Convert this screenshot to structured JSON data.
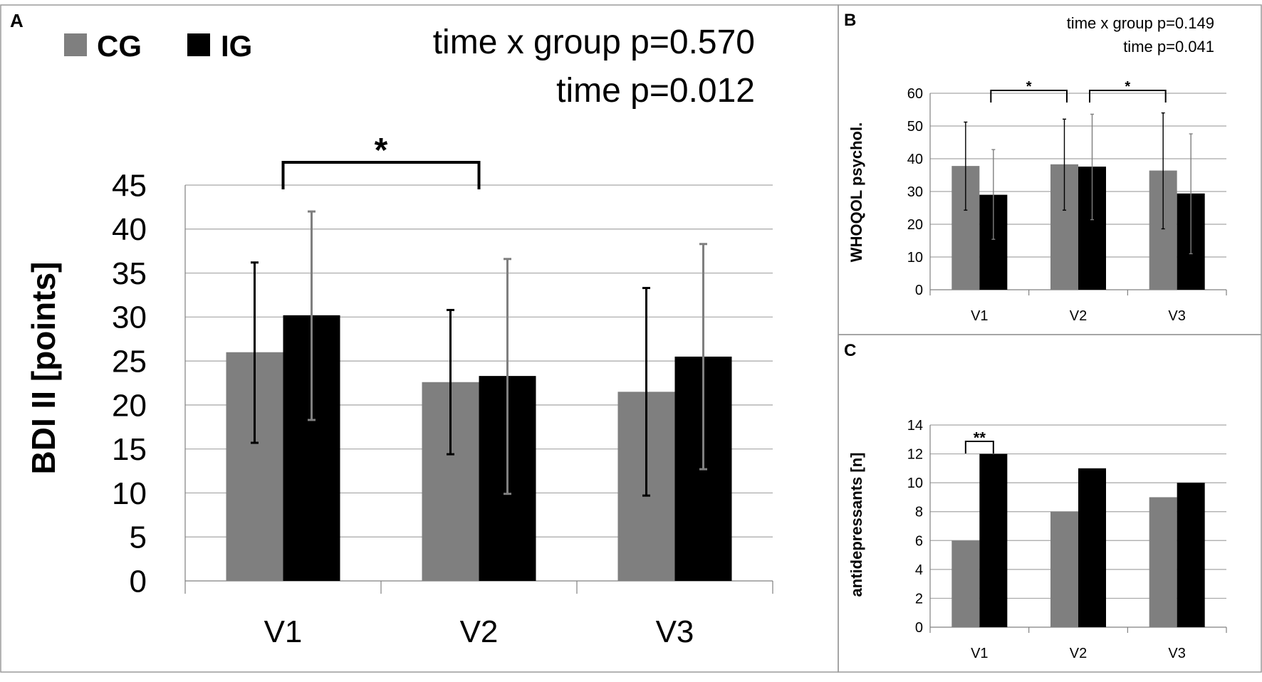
{
  "legend": {
    "cg_label": "CG",
    "ig_label": "IG"
  },
  "colors": {
    "cg": "#7f7f7f",
    "ig": "#000000",
    "grid": "#a6a6a6",
    "frame": "#9a9a9a"
  },
  "chart_data": [
    {
      "panel_label": "A",
      "type": "bar",
      "title": "",
      "xlabel": "",
      "ylabel": "BDI II [points]",
      "categories": [
        "V1",
        "V2",
        "V3"
      ],
      "ylim": [
        0,
        45
      ],
      "yticks": [
        0,
        5,
        10,
        15,
        20,
        25,
        30,
        35,
        40,
        45
      ],
      "ytick_labels": [
        "0",
        "5",
        "10",
        "15",
        "20",
        "25",
        "30",
        "35",
        "40",
        "45"
      ],
      "grid": true,
      "series": [
        {
          "name": "CG",
          "values": [
            26.0,
            22.6,
            21.5
          ],
          "err_low": [
            15.7,
            14.4,
            9.7
          ],
          "err_high": [
            36.2,
            30.8,
            33.3
          ]
        },
        {
          "name": "IG",
          "values": [
            30.2,
            23.3,
            25.5
          ],
          "err_low": [
            18.3,
            9.9,
            12.7
          ],
          "err_high": [
            42.0,
            36.6,
            38.3
          ]
        }
      ],
      "annotations": [
        "time x group p=0.570",
        "time p=0.012"
      ],
      "significance": [
        {
          "from": 0,
          "to": 1,
          "label": "*"
        }
      ]
    },
    {
      "panel_label": "B",
      "type": "bar",
      "title": "",
      "xlabel": "",
      "ylabel": "WHOQOL psychol.",
      "categories": [
        "V1",
        "V2",
        "V3"
      ],
      "ylim": [
        0,
        60
      ],
      "yticks": [
        0,
        10,
        20,
        30,
        40,
        50,
        60
      ],
      "ytick_labels": [
        "0",
        "10",
        "20",
        "30",
        "40",
        "50",
        "60"
      ],
      "grid": true,
      "series": [
        {
          "name": "CG",
          "values": [
            37.8,
            38.3,
            36.4
          ],
          "err_low": [
            24.3,
            24.3,
            18.6
          ],
          "err_high": [
            51.2,
            52.1,
            54.0
          ]
        },
        {
          "name": "IG",
          "values": [
            29.0,
            37.6,
            29.4
          ],
          "err_low": [
            15.4,
            21.4,
            11.0
          ],
          "err_high": [
            42.8,
            53.6,
            47.6
          ]
        }
      ],
      "annotations": [
        "time x group p=0.149",
        "time p=0.041"
      ],
      "significance": [
        {
          "from": 0,
          "to": 1,
          "label": "*"
        },
        {
          "from": 1,
          "to": 2,
          "label": "*"
        }
      ]
    },
    {
      "panel_label": "C",
      "type": "bar",
      "title": "",
      "xlabel": "",
      "ylabel": "antidepressants [n]",
      "categories": [
        "V1",
        "V2",
        "V3"
      ],
      "ylim": [
        0,
        14
      ],
      "yticks": [
        0,
        2,
        4,
        6,
        8,
        10,
        12,
        14
      ],
      "ytick_labels": [
        "0",
        "2",
        "4",
        "6",
        "8",
        "10",
        "12",
        "14"
      ],
      "grid": true,
      "series": [
        {
          "name": "CG",
          "values": [
            6,
            8,
            9
          ]
        },
        {
          "name": "IG",
          "values": [
            12,
            11,
            10
          ]
        }
      ],
      "annotations": [],
      "significance": [
        {
          "category": 0,
          "label": "**"
        }
      ]
    }
  ]
}
